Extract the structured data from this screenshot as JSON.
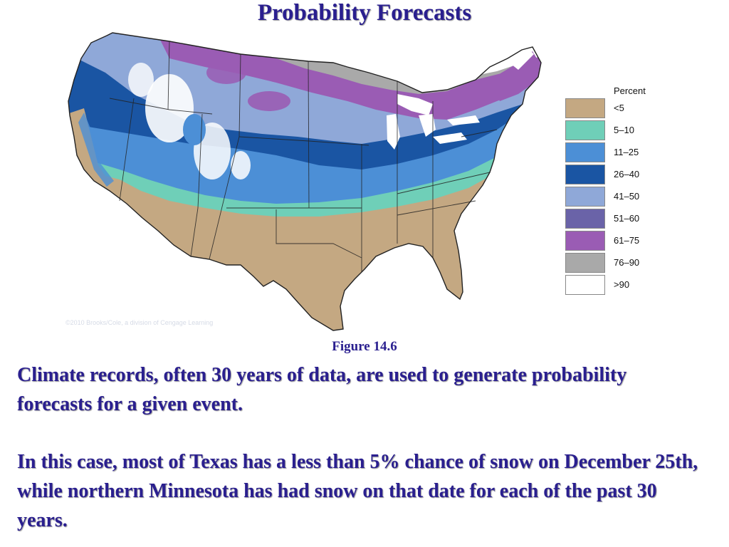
{
  "slide": {
    "title": "Probability Forecasts",
    "figure_caption": "Figure 14.6",
    "paragraph_1": "Climate records, often 30 years of data, are used to generate probability forecasts for a given event.",
    "paragraph_2": "In this case, most of Texas has a less than 5% chance of snow on December 25th, while northern Minnesota has had snow on that date for each of the past 30 years.",
    "watermark": "©2010 Brooks/Cole, a division of Cengage Learning"
  },
  "legend": {
    "title": "Percent",
    "items": [
      {
        "label": "<5",
        "color": "#c4a882"
      },
      {
        "label": "5–10",
        "color": "#6fcfb8"
      },
      {
        "label": "11–25",
        "color": "#4c8fd6"
      },
      {
        "label": "26–40",
        "color": "#1a55a3"
      },
      {
        "label": "41–50",
        "color": "#8fa8d8"
      },
      {
        "label": "51–60",
        "color": "#6a63a8"
      },
      {
        "label": "61–75",
        "color": "#9a5cb4"
      },
      {
        "label": "76–90",
        "color": "#a9a9a9"
      },
      {
        "label": ">90",
        "color": "#ffffff"
      }
    ]
  }
}
